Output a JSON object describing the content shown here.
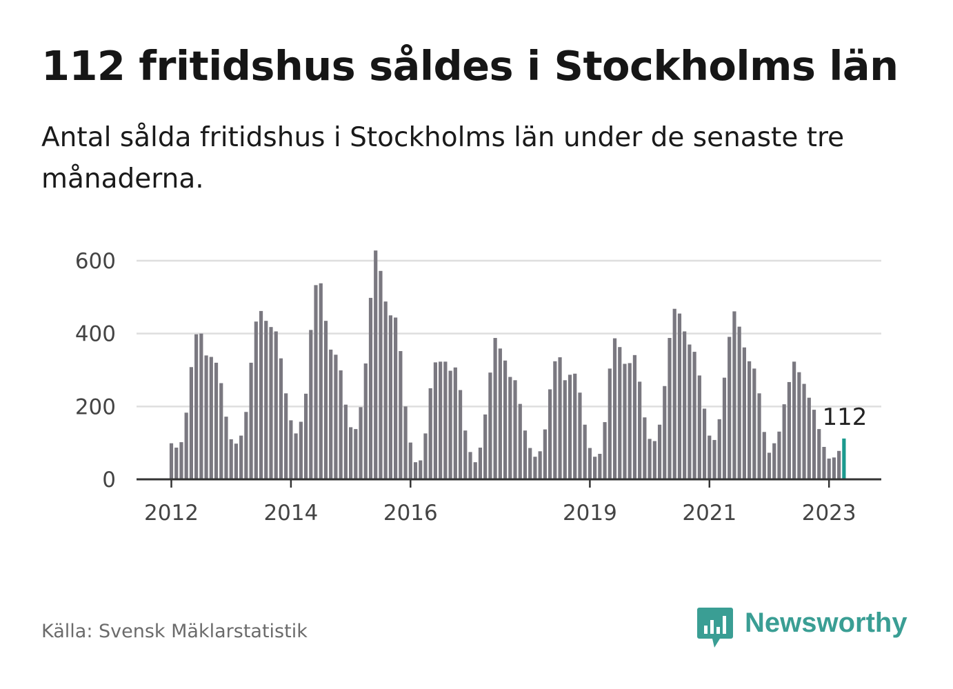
{
  "header": {
    "title": "112 fritidshus såldes i Stockholms län",
    "subtitle": "Antal sålda fritidshus i Stockholms län under de senaste tre månaderna."
  },
  "chart_data": {
    "type": "bar",
    "title": "112 fritidshus såldes i Stockholms län",
    "xlabel": "",
    "ylabel": "",
    "ylim": [
      0,
      650
    ],
    "yticks": [
      0,
      200,
      400,
      600
    ],
    "grid": true,
    "start": "2012-01",
    "categories": [
      "2012-01",
      "2012-02",
      "2012-03",
      "2012-04",
      "2012-05",
      "2012-06",
      "2012-07",
      "2012-08",
      "2012-09",
      "2012-10",
      "2012-11",
      "2012-12",
      "2013-01",
      "2013-02",
      "2013-03",
      "2013-04",
      "2013-05",
      "2013-06",
      "2013-07",
      "2013-08",
      "2013-09",
      "2013-10",
      "2013-11",
      "2013-12",
      "2014-01",
      "2014-02",
      "2014-03",
      "2014-04",
      "2014-05",
      "2014-06",
      "2014-07",
      "2014-08",
      "2014-09",
      "2014-10",
      "2014-11",
      "2014-12",
      "2015-01",
      "2015-02",
      "2015-03",
      "2015-04",
      "2015-05",
      "2015-06",
      "2015-07",
      "2015-08",
      "2015-09",
      "2015-10",
      "2015-11",
      "2015-12",
      "2016-01",
      "2016-02",
      "2016-03",
      "2016-04",
      "2016-05",
      "2016-06",
      "2016-07",
      "2016-08",
      "2016-09",
      "2016-10",
      "2016-11",
      "2016-12",
      "2017-01",
      "2017-02",
      "2017-03",
      "2017-04",
      "2017-05",
      "2017-06",
      "2017-07",
      "2017-08",
      "2017-09",
      "2017-10",
      "2017-11",
      "2017-12",
      "2018-01",
      "2018-02",
      "2018-03",
      "2018-04",
      "2018-05",
      "2018-06",
      "2018-07",
      "2018-08",
      "2018-09",
      "2018-10",
      "2018-11",
      "2018-12",
      "2019-01",
      "2019-02",
      "2019-03",
      "2019-04",
      "2019-05",
      "2019-06",
      "2019-07",
      "2019-08",
      "2019-09",
      "2019-10",
      "2019-11",
      "2019-12",
      "2020-01",
      "2020-02",
      "2020-03",
      "2020-04",
      "2020-05",
      "2020-06",
      "2020-07",
      "2020-08",
      "2020-09",
      "2020-10",
      "2020-11",
      "2020-12",
      "2021-01",
      "2021-02",
      "2021-03",
      "2021-04",
      "2021-05",
      "2021-06",
      "2021-07",
      "2021-08",
      "2021-09",
      "2021-10",
      "2021-11",
      "2021-12",
      "2022-01",
      "2022-02",
      "2022-03",
      "2022-04",
      "2022-05",
      "2022-06",
      "2022-07",
      "2022-08",
      "2022-09",
      "2022-10",
      "2022-11",
      "2022-12",
      "2023-01",
      "2023-02",
      "2023-03",
      "2023-04"
    ],
    "values": [
      99,
      87,
      102,
      183,
      308,
      398,
      400,
      340,
      336,
      320,
      264,
      172,
      110,
      98,
      120,
      185,
      320,
      433,
      462,
      435,
      418,
      406,
      332,
      236,
      162,
      126,
      158,
      235,
      410,
      533,
      538,
      435,
      356,
      342,
      299,
      205,
      143,
      138,
      198,
      318,
      498,
      628,
      572,
      488,
      450,
      444,
      352,
      200,
      101,
      47,
      52,
      126,
      250,
      321,
      323,
      323,
      298,
      307,
      245,
      134,
      75,
      47,
      87,
      178,
      293,
      388,
      359,
      326,
      281,
      272,
      207,
      134,
      86,
      62,
      77,
      137,
      247,
      324,
      335,
      272,
      287,
      290,
      238,
      150,
      86,
      62,
      70,
      157,
      304,
      387,
      363,
      317,
      319,
      341,
      268,
      170,
      111,
      105,
      150,
      256,
      388,
      468,
      455,
      406,
      370,
      350,
      285,
      194,
      120,
      108,
      165,
      279,
      391,
      461,
      419,
      362,
      324,
      304,
      236,
      130,
      73,
      99,
      131,
      206,
      267,
      323,
      294,
      262,
      224,
      191,
      138,
      89,
      57,
      60,
      78,
      112
    ],
    "highlight": {
      "category": "2023-04",
      "value": 112,
      "label": "112",
      "color": "#1b9a8e"
    },
    "bar_color": "#7a7880",
    "xtick_labels": [
      {
        "category": "2012-01",
        "label": "2012"
      },
      {
        "category": "2014-01",
        "label": "2014"
      },
      {
        "category": "2016-01",
        "label": "2016"
      },
      {
        "category": "2019-01",
        "label": "2019"
      },
      {
        "category": "2021-01",
        "label": "2021"
      },
      {
        "category": "2023-01",
        "label": "2023"
      }
    ]
  },
  "footer": {
    "source": "Källa: Svensk Mäklarstatistik",
    "brand": "Newsworthy",
    "brand_color": "#3a9e94",
    "brand_icon": "bar-chart-speech-bubble-icon"
  }
}
